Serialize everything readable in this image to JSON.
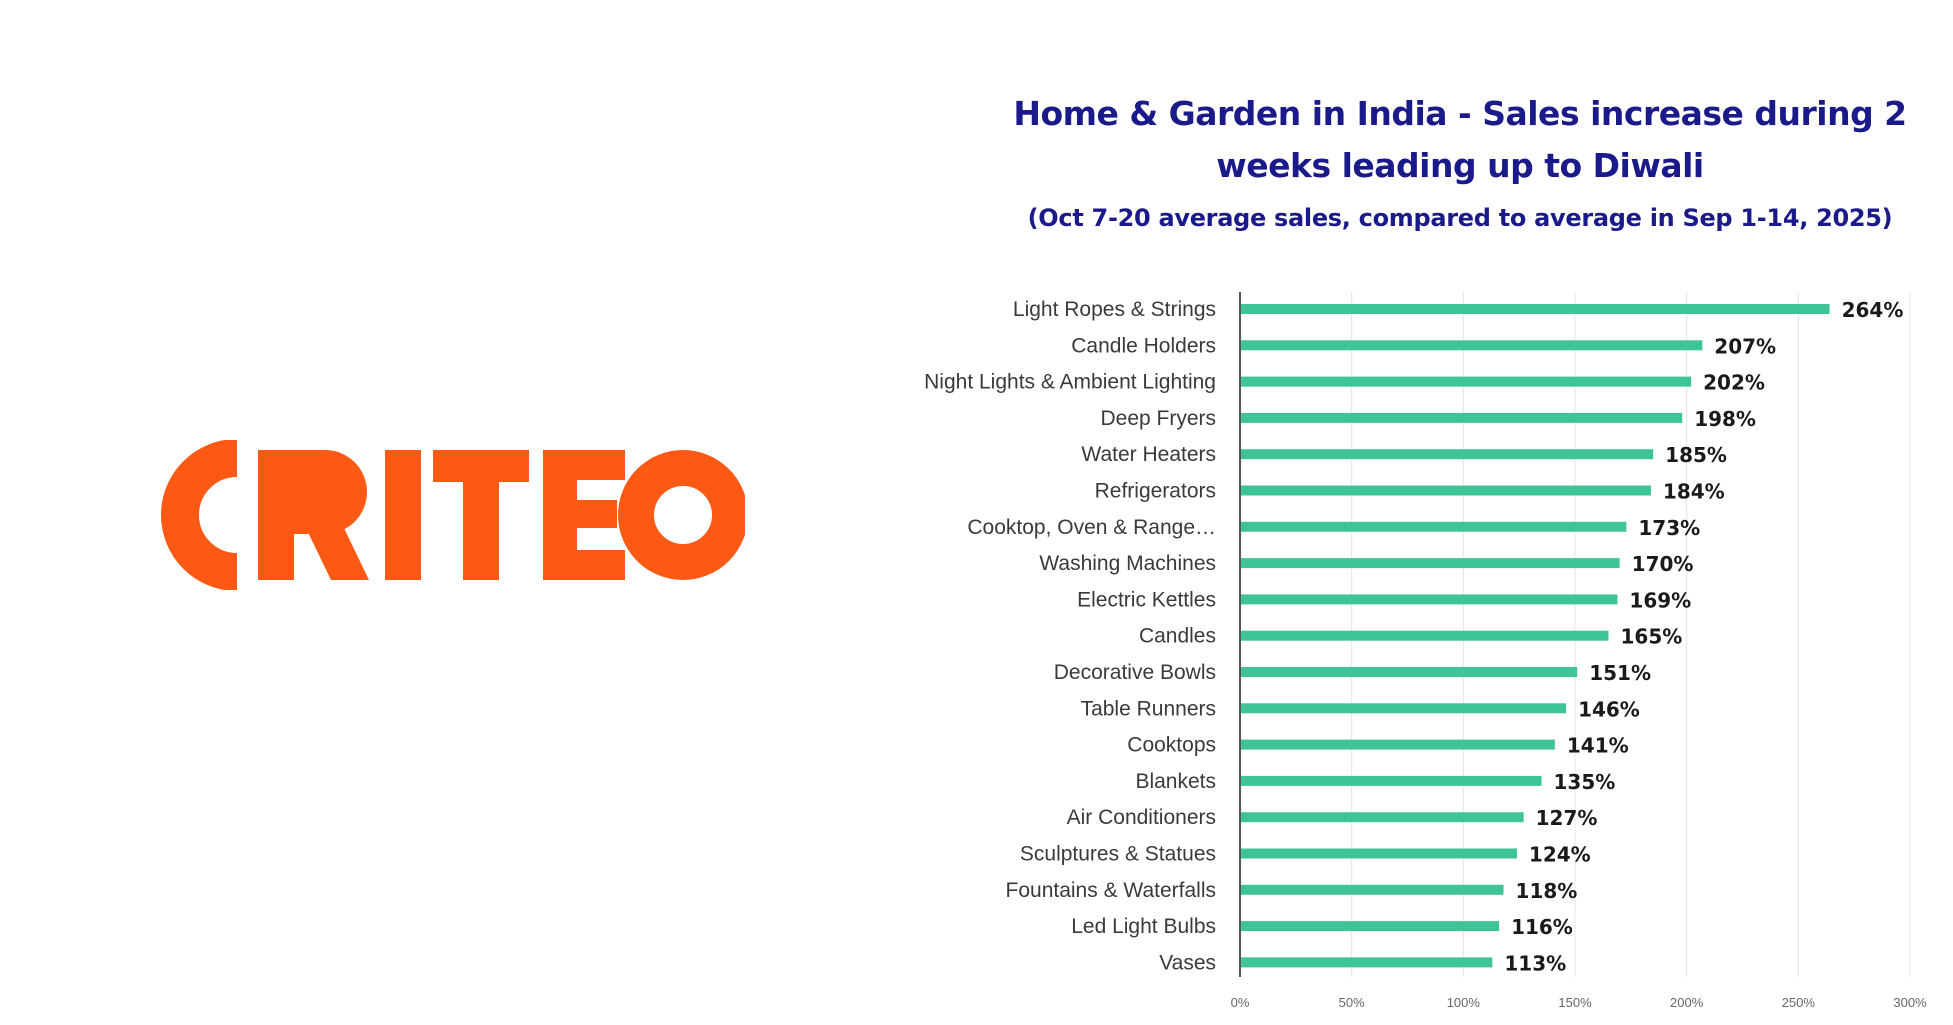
{
  "brand": {
    "logo_text": "CRITEO",
    "color": "#fc5a14"
  },
  "colors": {
    "bar": "#3fc496",
    "title": "#1b1a8a",
    "label": "#3a3a3a",
    "value": "#1a1a1a",
    "grid": "#e4e4e4",
    "axis": "#555555"
  },
  "chart_data": {
    "type": "bar",
    "orientation": "horizontal",
    "title": "Home & Garden in India - Sales increase during 2 weeks leading up to Diwali",
    "subtitle": "(Oct 7-20 average sales, compared to average in Sep 1-14, 2025)",
    "categories": [
      "Light Ropes & Strings",
      "Candle Holders",
      "Night Lights & Ambient Lighting",
      "Deep Fryers",
      "Water Heaters",
      "Refrigerators",
      "Cooktop, Oven & Range…",
      "Washing Machines",
      "Electric Kettles",
      "Candles",
      "Decorative Bowls",
      "Table Runners",
      "Cooktops",
      "Blankets",
      "Air Conditioners",
      "Sculptures & Statues",
      "Fountains & Waterfalls",
      "Led Light Bulbs",
      "Vases"
    ],
    "values": [
      264,
      207,
      202,
      198,
      185,
      184,
      173,
      170,
      169,
      165,
      151,
      146,
      141,
      135,
      127,
      124,
      118,
      116,
      113
    ],
    "value_labels": [
      "264%",
      "207%",
      "202%",
      "198%",
      "185%",
      "184%",
      "173%",
      "170%",
      "169%",
      "165%",
      "151%",
      "146%",
      "141%",
      "135%",
      "127%",
      "124%",
      "118%",
      "116%",
      "113%"
    ],
    "xlim": [
      0,
      300
    ],
    "xticks": [
      0,
      50,
      100,
      150,
      200,
      250,
      300
    ],
    "xtick_labels": [
      "0%",
      "50%",
      "100%",
      "150%",
      "200%",
      "250%",
      "300%"
    ],
    "grid": "vertical",
    "legend": "none"
  }
}
